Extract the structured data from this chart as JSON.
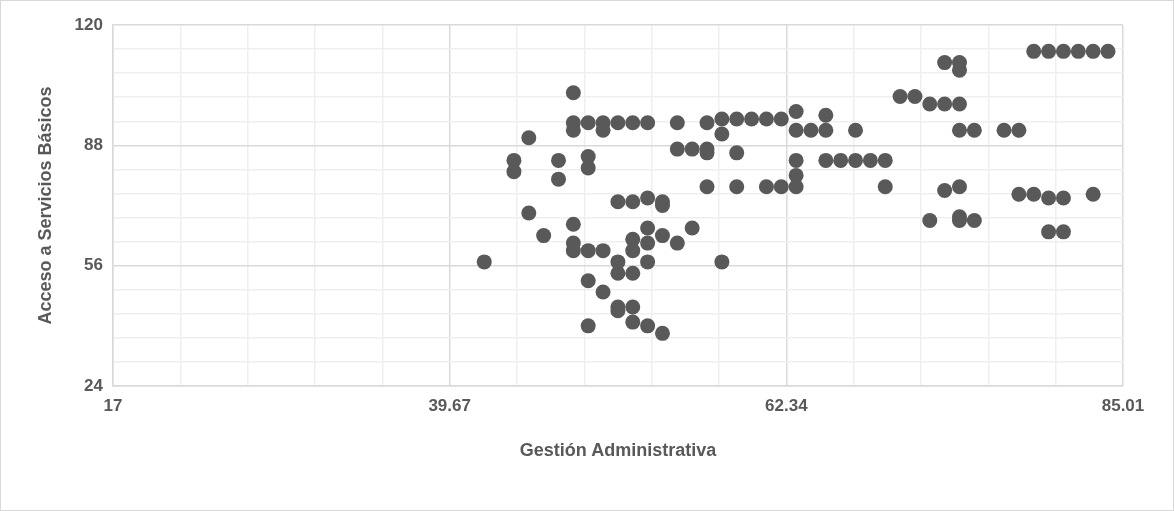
{
  "chart_data": {
    "type": "scatter",
    "xlabel": "Gestión Administrativa",
    "ylabel": "Acceso a Servicios Básicos",
    "xlim": [
      17,
      85.01
    ],
    "xticks": [
      17,
      {
        "value": 21.534,
        "label": null
      },
      {
        "value": 26.068,
        "label": null
      },
      {
        "value": 30.602,
        "label": null
      },
      {
        "value": 35.136,
        "label": null
      },
      39.67,
      {
        "value": 44.204,
        "label": null
      },
      {
        "value": 48.738,
        "label": null
      },
      {
        "value": 53.272,
        "label": null
      },
      {
        "value": 57.806,
        "label": null
      },
      62.34,
      {
        "value": 66.874,
        "label": null
      },
      {
        "value": 71.408,
        "label": null
      },
      {
        "value": 75.942,
        "label": null
      },
      {
        "value": 80.476,
        "label": null
      },
      85.01
    ],
    "ylim": [
      24,
      120
    ],
    "yticks": [
      24,
      {
        "value": 30.4,
        "label": null
      },
      {
        "value": 36.8,
        "label": null
      },
      {
        "value": 43.2,
        "label": null
      },
      {
        "value": 49.6,
        "label": null
      },
      56,
      {
        "value": 62.4,
        "label": null
      },
      {
        "value": 68.8,
        "label": null
      },
      {
        "value": 75.2,
        "label": null
      },
      {
        "value": 81.6,
        "label": null
      },
      88,
      {
        "value": 94.4,
        "label": null
      },
      {
        "value": 100.8,
        "label": null
      },
      {
        "value": 107.2,
        "label": null
      },
      {
        "value": 113.6,
        "label": null
      },
      120
    ],
    "grid": true,
    "legend": false,
    "marker": "circle",
    "series": [
      {
        "color": "#595959",
        "x": [
          42,
          44,
          44,
          45,
          45,
          46,
          47,
          47,
          48,
          48,
          48,
          48,
          48,
          48,
          49,
          49,
          49,
          49,
          49,
          49,
          50,
          50,
          50,
          50,
          51,
          51,
          51,
          51,
          51,
          51,
          52,
          52,
          52,
          52,
          52,
          52,
          52,
          53,
          53,
          53,
          53,
          53,
          53,
          54,
          54,
          54,
          54,
          55,
          55,
          55,
          56,
          56,
          57,
          57,
          57,
          57,
          58,
          58,
          58,
          59,
          59,
          59,
          60,
          61,
          61,
          62,
          62,
          63,
          63,
          63,
          63,
          63,
          64,
          65,
          65,
          65,
          66,
          67,
          67,
          68,
          69,
          69,
          70,
          71,
          72,
          72,
          73,
          73,
          73,
          74,
          74,
          74,
          74,
          74,
          74,
          74,
          75,
          75,
          77,
          78,
          78,
          79,
          79,
          80,
          80,
          80,
          81,
          81,
          81,
          82,
          83,
          83,
          84
        ],
        "values": [
          57,
          84,
          81,
          90,
          70,
          64,
          84,
          79,
          102,
          94,
          92,
          67,
          62,
          60,
          94,
          85,
          82,
          60,
          52,
          40,
          94,
          92,
          60,
          49,
          94,
          73,
          57,
          54,
          45,
          44,
          94,
          73,
          63,
          60,
          54,
          45,
          41,
          94,
          74,
          66,
          62,
          57,
          40,
          73,
          72,
          64,
          38,
          94,
          87,
          62,
          87,
          66,
          94,
          87,
          86,
          77,
          95,
          91,
          57,
          95,
          86,
          77,
          95,
          95,
          77,
          95,
          77,
          97,
          92,
          84,
          80,
          77,
          92,
          96,
          92,
          84,
          84,
          92,
          84,
          84,
          84,
          77,
          101,
          101,
          99,
          68,
          110,
          99,
          76,
          110,
          108,
          99,
          92,
          77,
          69,
          68,
          92,
          68,
          92,
          92,
          75,
          113,
          75,
          113,
          74,
          65,
          113,
          74,
          65,
          113,
          113,
          75,
          113
        ]
      }
    ]
  }
}
